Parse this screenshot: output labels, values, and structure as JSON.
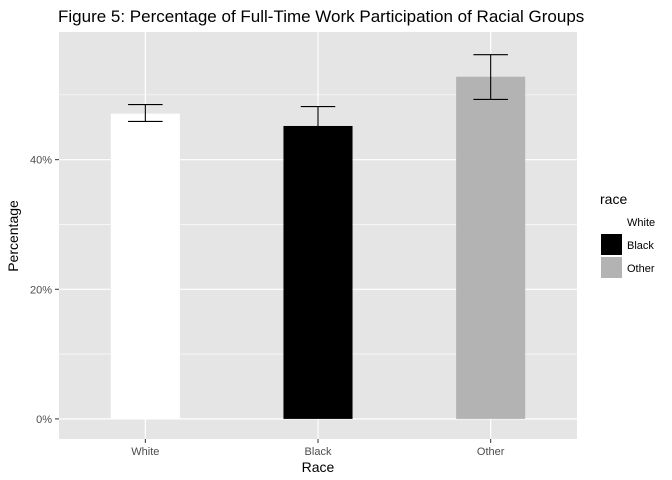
{
  "chart_data": {
    "type": "bar",
    "title": "Figure 5: Percentage of Full-Time Work Participation of Racial Groups",
    "xlabel": "Race",
    "ylabel": "Percentage",
    "categories": [
      "White",
      "Black",
      "Other"
    ],
    "values": [
      47.1,
      45.2,
      52.8
    ],
    "error_low": [
      45.9,
      42.4,
      49.3
    ],
    "error_high": [
      48.5,
      48.2,
      56.2
    ],
    "bar_colors": [
      "#ffffff",
      "#000000",
      "#b3b3b3"
    ],
    "ylim": [
      -3.1,
      59.7
    ],
    "yticks": [
      0,
      20,
      40
    ],
    "ytick_labels": [
      "0%",
      "20%",
      "40%"
    ],
    "grid": true,
    "panel_background": "#e5e5e5",
    "grid_color": "#ffffff",
    "legend": {
      "title": "race",
      "placement": "right",
      "entries": [
        {
          "label": "White",
          "color": "#ffffff"
        },
        {
          "label": "Black",
          "color": "#000000"
        },
        {
          "label": "Other",
          "color": "#b3b3b3"
        }
      ]
    }
  }
}
